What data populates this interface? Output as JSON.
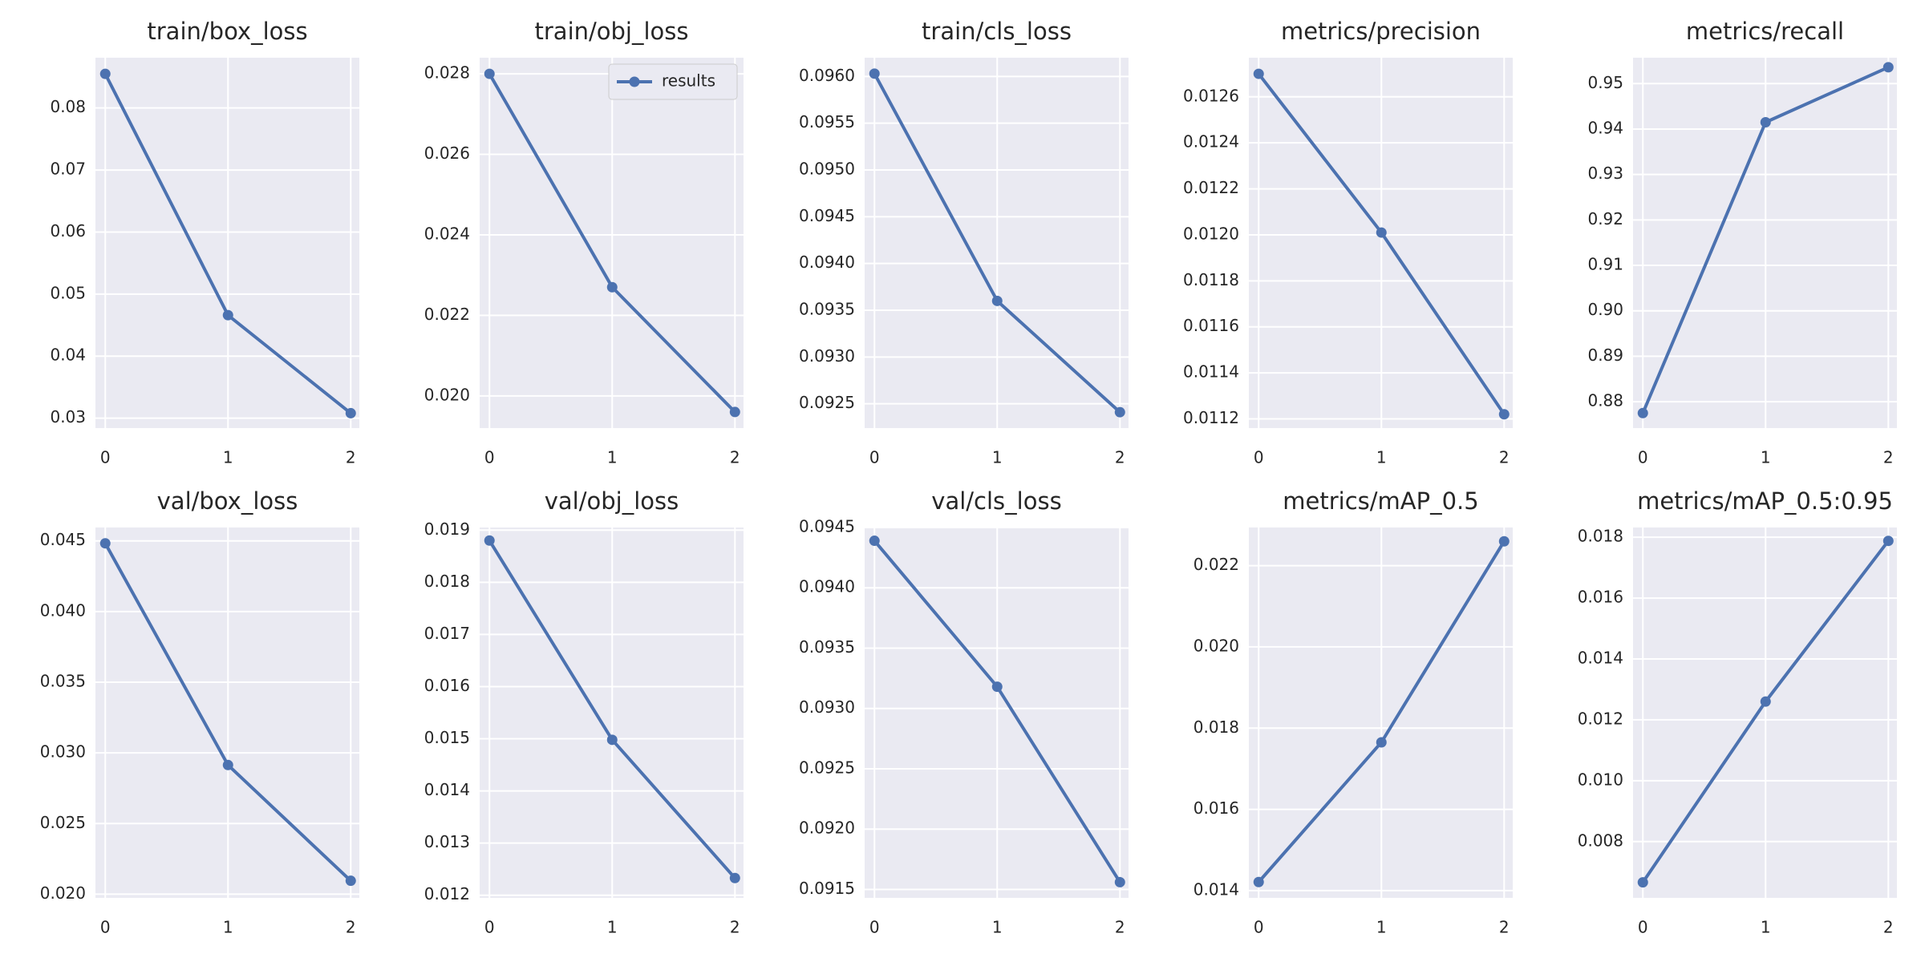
{
  "chart_data": [
    {
      "type": "line",
      "title": "train/box_loss",
      "x": [
        0,
        1,
        2
      ],
      "xlim": [
        -0.08,
        2.07
      ],
      "xticks": [
        0,
        1,
        2
      ],
      "ylim": [
        0.0284,
        0.0881
      ],
      "yticks": [
        0.03,
        0.04,
        0.05,
        0.06,
        0.07,
        0.08
      ],
      "grid": true,
      "series": [
        {
          "color": "#4c72b0",
          "values": [
            0.0855,
            0.0466,
            0.0308
          ]
        }
      ]
    },
    {
      "type": "line",
      "title": "train/obj_loss",
      "x": [
        0,
        1,
        2
      ],
      "xlim": [
        -0.08,
        2.07
      ],
      "xticks": [
        0,
        1,
        2
      ],
      "ylim": [
        0.0192,
        0.0284
      ],
      "yticks": [
        {
          "value": 0.02,
          "label": "0.020"
        },
        0.022,
        0.024,
        0.026,
        0.028
      ],
      "grid": true,
      "legend": "upper right",
      "series": [
        {
          "name": "results",
          "color": "#4c72b0",
          "values": [
            0.028,
            0.0227,
            0.0196
          ]
        }
      ]
    },
    {
      "type": "line",
      "title": "train/cls_loss",
      "x": [
        0,
        1,
        2
      ],
      "xlim": [
        -0.08,
        2.07
      ],
      "xticks": [
        0,
        1,
        2
      ],
      "ylim": [
        0.09224,
        0.0962
      ],
      "yticks": [
        0.0925,
        {
          "value": 0.093,
          "label": "0.0930"
        },
        0.0935,
        {
          "value": 0.094,
          "label": "0.0940"
        },
        0.0945,
        {
          "value": 0.095,
          "label": "0.0950"
        },
        0.0955,
        {
          "value": 0.096,
          "label": "0.0960"
        }
      ],
      "grid": true,
      "series": [
        {
          "color": "#4c72b0",
          "values": [
            0.09603,
            0.0936,
            0.09241
          ]
        }
      ]
    },
    {
      "type": "line",
      "title": "metrics/precision",
      "x": [
        0,
        1,
        2
      ],
      "xlim": [
        -0.08,
        2.07
      ],
      "xticks": [
        0,
        1,
        2
      ],
      "ylim": [
        0.01116,
        0.01277
      ],
      "yticks": [
        0.0112,
        0.0114,
        0.0116,
        0.0118,
        {
          "value": 0.012,
          "label": "0.0120"
        },
        0.0122,
        0.0124,
        0.0126
      ],
      "grid": true,
      "series": [
        {
          "color": "#4c72b0",
          "values": [
            0.0127,
            0.01201,
            0.01122
          ]
        }
      ]
    },
    {
      "type": "line",
      "title": "metrics/recall",
      "x": [
        0,
        1,
        2
      ],
      "xlim": [
        -0.08,
        2.07
      ],
      "xticks": [
        0,
        1,
        2
      ],
      "ylim": [
        0.8742,
        0.9557
      ],
      "yticks": [
        0.88,
        0.89,
        {
          "value": 0.9,
          "label": "0.90"
        },
        0.91,
        0.92,
        0.93,
        0.94,
        0.95
      ],
      "grid": true,
      "series": [
        {
          "color": "#4c72b0",
          "values": [
            0.8775,
            0.9415,
            0.9536
          ]
        }
      ]
    },
    {
      "type": "line",
      "title": "val/box_loss",
      "x": [
        0,
        1,
        2
      ],
      "xlim": [
        -0.08,
        2.07
      ],
      "xticks": [
        0,
        1,
        2
      ],
      "ylim": [
        0.01974,
        0.04595
      ],
      "yticks": [
        {
          "value": 0.02,
          "label": "0.020"
        },
        0.025,
        {
          "value": 0.03,
          "label": "0.030"
        },
        0.035,
        {
          "value": 0.04,
          "label": "0.040"
        },
        0.045
      ],
      "grid": true,
      "series": [
        {
          "color": "#4c72b0",
          "values": [
            0.04483,
            0.02914,
            0.02095
          ]
        }
      ]
    },
    {
      "type": "line",
      "title": "val/obj_loss",
      "x": [
        0,
        1,
        2
      ],
      "xlim": [
        -0.08,
        2.07
      ],
      "xticks": [
        0,
        1,
        2
      ],
      "ylim": [
        0.01195,
        0.01905
      ],
      "yticks": [
        0.012,
        0.013,
        0.014,
        0.015,
        0.016,
        0.017,
        0.018,
        0.019
      ],
      "grid": true,
      "series": [
        {
          "color": "#4c72b0",
          "values": [
            0.0188,
            0.01498,
            0.01233
          ]
        }
      ]
    },
    {
      "type": "line",
      "title": "val/cls_loss",
      "x": [
        0,
        1,
        2
      ],
      "xlim": [
        -0.08,
        2.07
      ],
      "xticks": [
        0,
        1,
        2
      ],
      "ylim": [
        0.09143,
        0.0945
      ],
      "yticks": [
        0.0915,
        {
          "value": 0.092,
          "label": "0.0920"
        },
        0.0925,
        {
          "value": 0.093,
          "label": "0.0930"
        },
        0.0935,
        {
          "value": 0.094,
          "label": "0.0940"
        },
        0.0945
      ],
      "grid": true,
      "series": [
        {
          "color": "#4c72b0",
          "values": [
            0.09439,
            0.09318,
            0.09156
          ]
        }
      ]
    },
    {
      "type": "line",
      "title": "metrics/mAP_0.5",
      "x": [
        0,
        1,
        2
      ],
      "xlim": [
        -0.08,
        2.07
      ],
      "xticks": [
        0,
        1,
        2
      ],
      "ylim": [
        0.01382,
        0.02294
      ],
      "yticks": [
        0.014,
        0.016,
        0.018,
        {
          "value": 0.02,
          "label": "0.020"
        },
        0.022
      ],
      "grid": true,
      "series": [
        {
          "color": "#4c72b0",
          "values": [
            0.01421,
            0.01765,
            0.0226
          ]
        }
      ]
    },
    {
      "type": "line",
      "title": "metrics/mAP_0.5:0.95",
      "x": [
        0,
        1,
        2
      ],
      "xlim": [
        -0.08,
        2.07
      ],
      "xticks": [
        0,
        1,
        2
      ],
      "ylim": [
        0.00615,
        0.01832
      ],
      "yticks": [
        0.008,
        {
          "value": 0.01,
          "label": "0.010"
        },
        0.012,
        0.014,
        0.016,
        0.018
      ],
      "grid": true,
      "series": [
        {
          "color": "#4c72b0",
          "values": [
            0.00666,
            0.0126,
            0.01788
          ]
        }
      ]
    }
  ]
}
